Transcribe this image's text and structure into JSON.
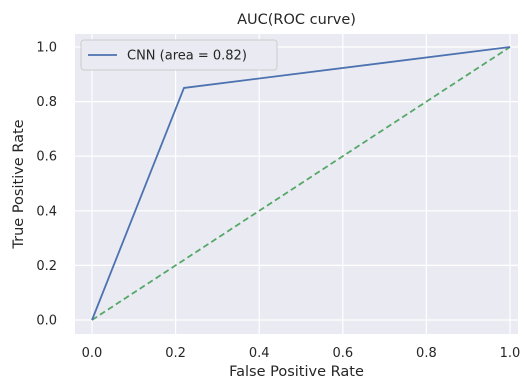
{
  "chart_data": {
    "type": "line",
    "title": "AUC(ROC curve)",
    "xlabel": "False Positive Rate",
    "ylabel": "True Positive Rate",
    "xlim": [
      -0.05,
      1.01
    ],
    "ylim": [
      -0.05,
      1.05
    ],
    "xticks": [
      0.0,
      0.2,
      0.4,
      0.6,
      0.8,
      1.0
    ],
    "xtick_labels": [
      "0.0",
      "0.2",
      "0.4",
      "0.6",
      "0.8",
      "1.0"
    ],
    "yticks": [
      0.0,
      0.2,
      0.4,
      0.6,
      0.8,
      1.0
    ],
    "ytick_labels": [
      "0.0",
      "0.2",
      "0.4",
      "0.6",
      "0.8",
      "1.0"
    ],
    "grid": true,
    "background": "#eaeaf2",
    "legend_position": "upper-left",
    "series": [
      {
        "name": "CNN (area = 0.82)",
        "x": [
          0.0,
          0.22,
          1.0
        ],
        "y": [
          0.0,
          0.85,
          1.0
        ],
        "color": "#4c72b0",
        "style": "solid"
      },
      {
        "x": [
          0.0,
          1.0
        ],
        "y": [
          0.0,
          1.0
        ],
        "color": "#55a868",
        "style": "dashed"
      }
    ]
  }
}
